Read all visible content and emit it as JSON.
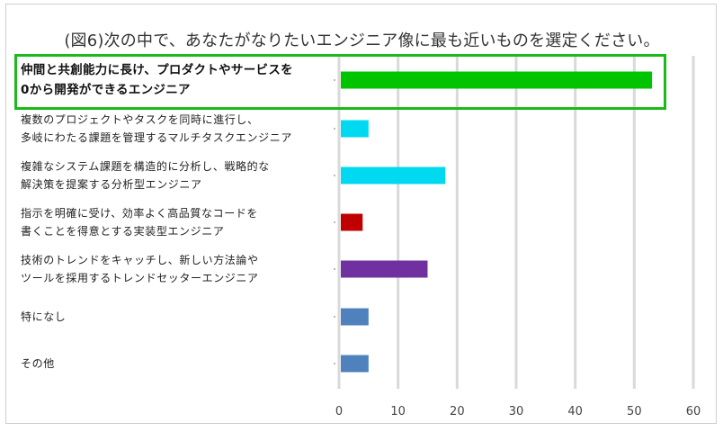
{
  "chart_data": {
    "type": "bar",
    "orientation": "horizontal",
    "title": "(図6)次の中で、あなたがなりたいエンジニア像に最も近いものを選定ください。",
    "categories": [
      [
        "仲間と共創能力に長け、プロダクトやサービスを",
        "0から開発ができるエンジニア"
      ],
      [
        "複数のプロジェクトやタスクを同時に進行し、",
        "多岐にわたる課題を管理するマルチタスクエンジニア"
      ],
      [
        "複雑なシステム課題を構造的に分析し、戦略的な",
        "解決策を提案する分析型エンジニア"
      ],
      [
        "指示を明確に受け、効率よく高品質なコードを",
        "書くことを得意とする実装型エンジニア"
      ],
      [
        "技術のトレンドをキャッチし、新しい方法論や",
        "ツールを採用するトレンドセッターエンジニア"
      ],
      [
        "特になし"
      ],
      [
        "その他"
      ]
    ],
    "values": [
      53,
      5,
      18,
      4,
      15,
      5,
      5
    ],
    "colors": [
      "#00c400",
      "#00d9f0",
      "#00d9f0",
      "#c00000",
      "#7030a0",
      "#4f81bd",
      "#4f81bd"
    ],
    "xlim": [
      0,
      60
    ],
    "xticks": [
      0,
      10,
      20,
      30,
      40,
      50,
      60
    ],
    "grid": true,
    "highlight_index": 0,
    "highlight_color": "#1aba1a"
  }
}
